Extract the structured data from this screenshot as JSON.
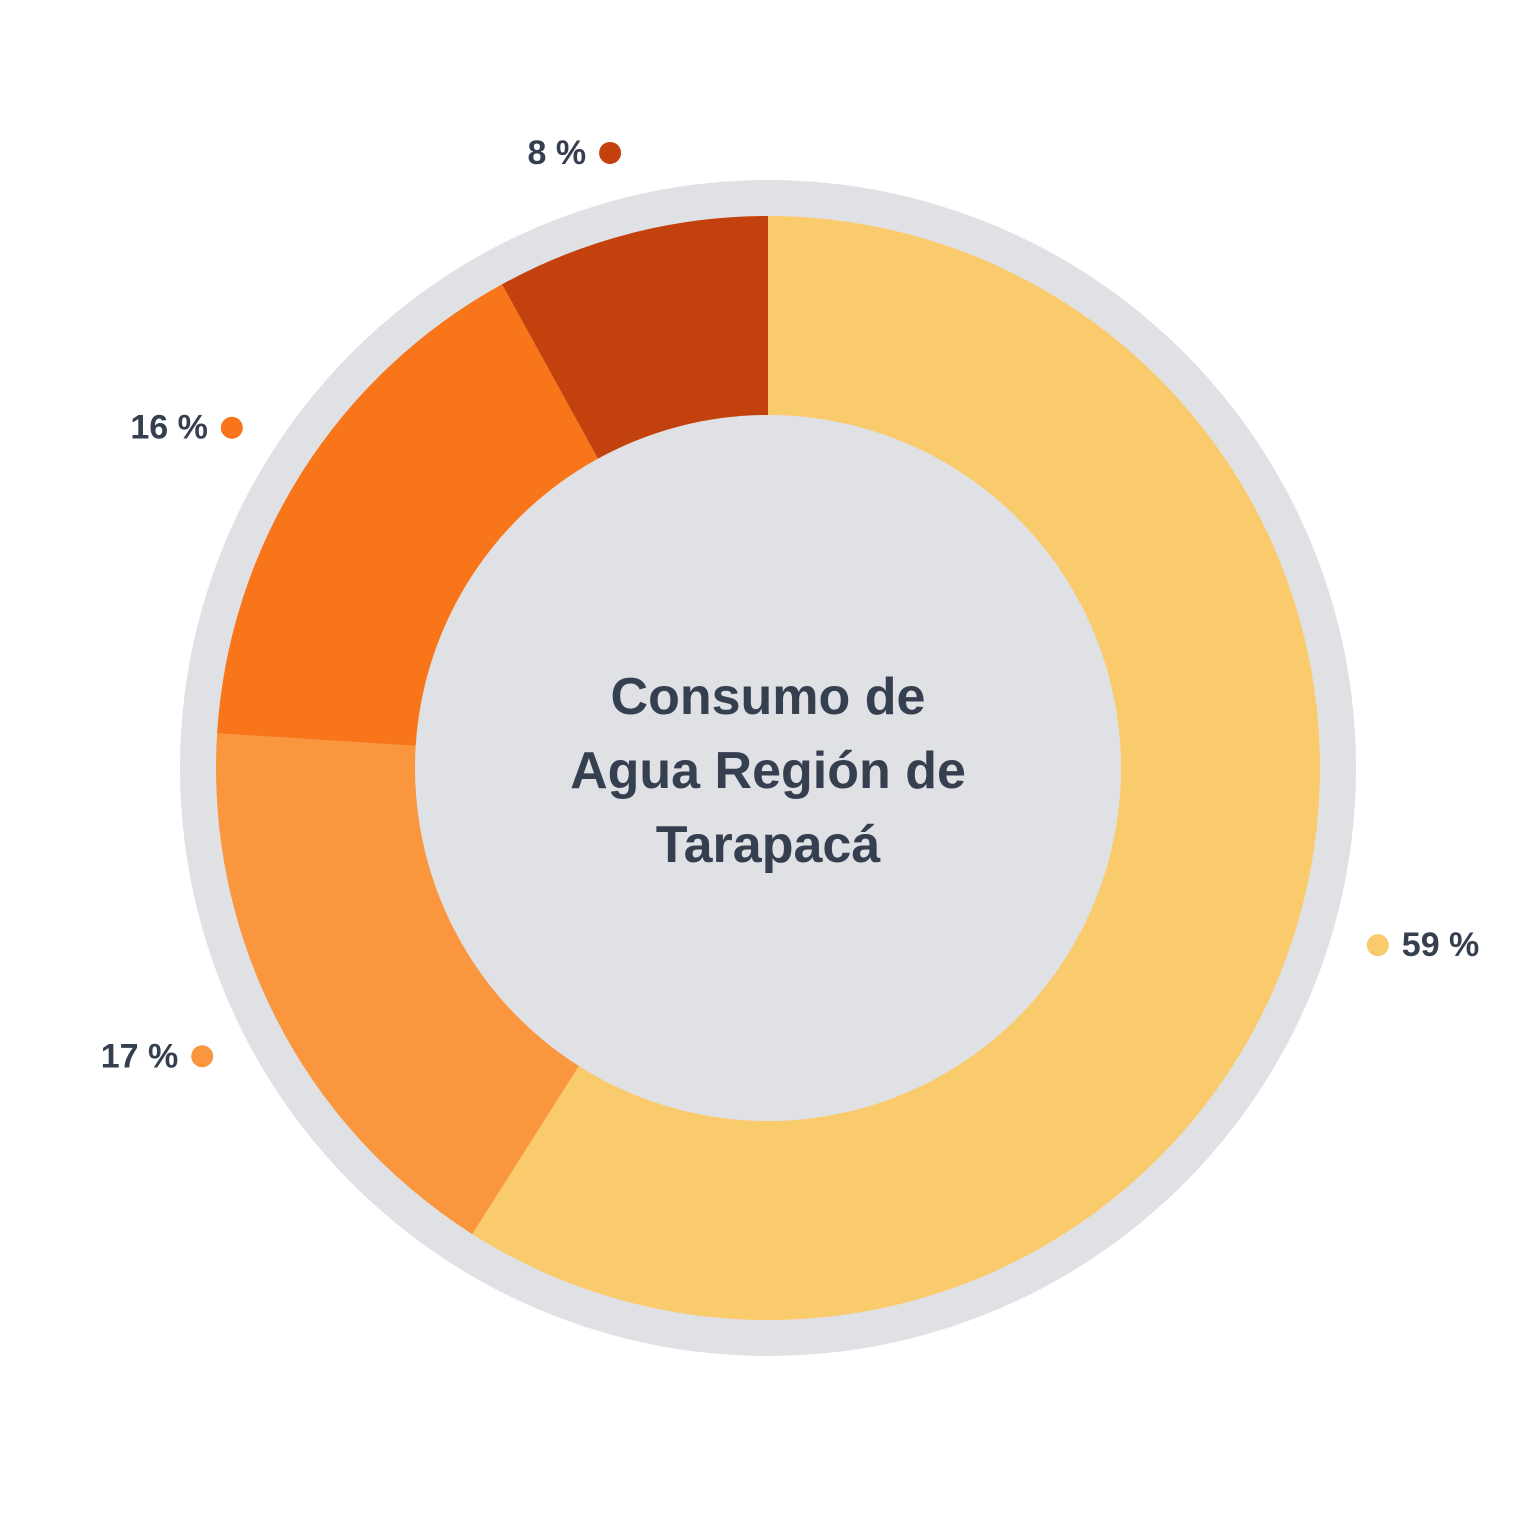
{
  "chart_data": {
    "type": "donut",
    "title": "Consumo de\nAgua Región de\nTarapacá",
    "values": [
      59,
      17,
      16,
      8
    ],
    "value_labels": [
      "59 %",
      "17 %",
      "16 %",
      "8 %"
    ],
    "colors": [
      "#facb6c",
      "#f9963e",
      "#f87519",
      "#c2410c"
    ]
  }
}
